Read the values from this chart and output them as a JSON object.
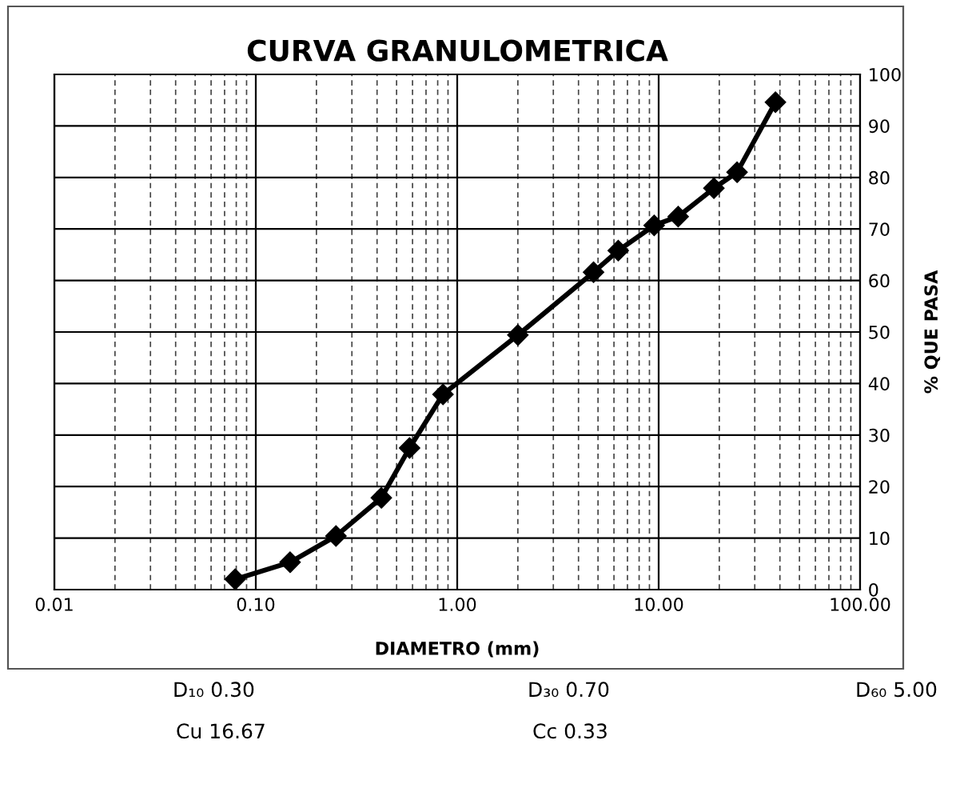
{
  "chart_data": {
    "type": "line",
    "title": "CURVA GRANULOMETRICA",
    "xlabel": "DIAMETRO (mm)",
    "ylabel": "% QUE PASA",
    "log": "x",
    "grid": true,
    "marker": "diamond",
    "line_style": "solid",
    "legend": false,
    "x": [
      0.079,
      0.148,
      0.25,
      0.42,
      0.58,
      0.85,
      2.0,
      4.75,
      6.3,
      9.5,
      12.5,
      18.8,
      24.5,
      38
    ],
    "series": [
      {
        "color": "#000000",
        "values": [
          2.0,
          5.3,
          10.4,
          17.8,
          27.5,
          37.9,
          49.4,
          61.6,
          65.8,
          70.7,
          72.4,
          77.9,
          81.0,
          94.6
        ]
      }
    ],
    "xlim": [
      0.01,
      100
    ],
    "xticks": [
      {
        "value": 0.01,
        "label": "0.01"
      },
      {
        "value": 0.1,
        "label": "0.10"
      },
      {
        "value": 1,
        "label": "1.00"
      },
      {
        "value": 10,
        "label": "10.00"
      },
      {
        "value": 100,
        "label": "100.00"
      }
    ],
    "ylim": [
      0,
      100
    ],
    "yticks": [
      0,
      10,
      20,
      30,
      40,
      50,
      60,
      70,
      80,
      90,
      100
    ],
    "annotations": [
      "D₁₀ 0.30",
      "D₃₀ 0.70",
      "D₆₀ 5.00",
      "Cu 16.67",
      "Cc 0.33"
    ]
  }
}
